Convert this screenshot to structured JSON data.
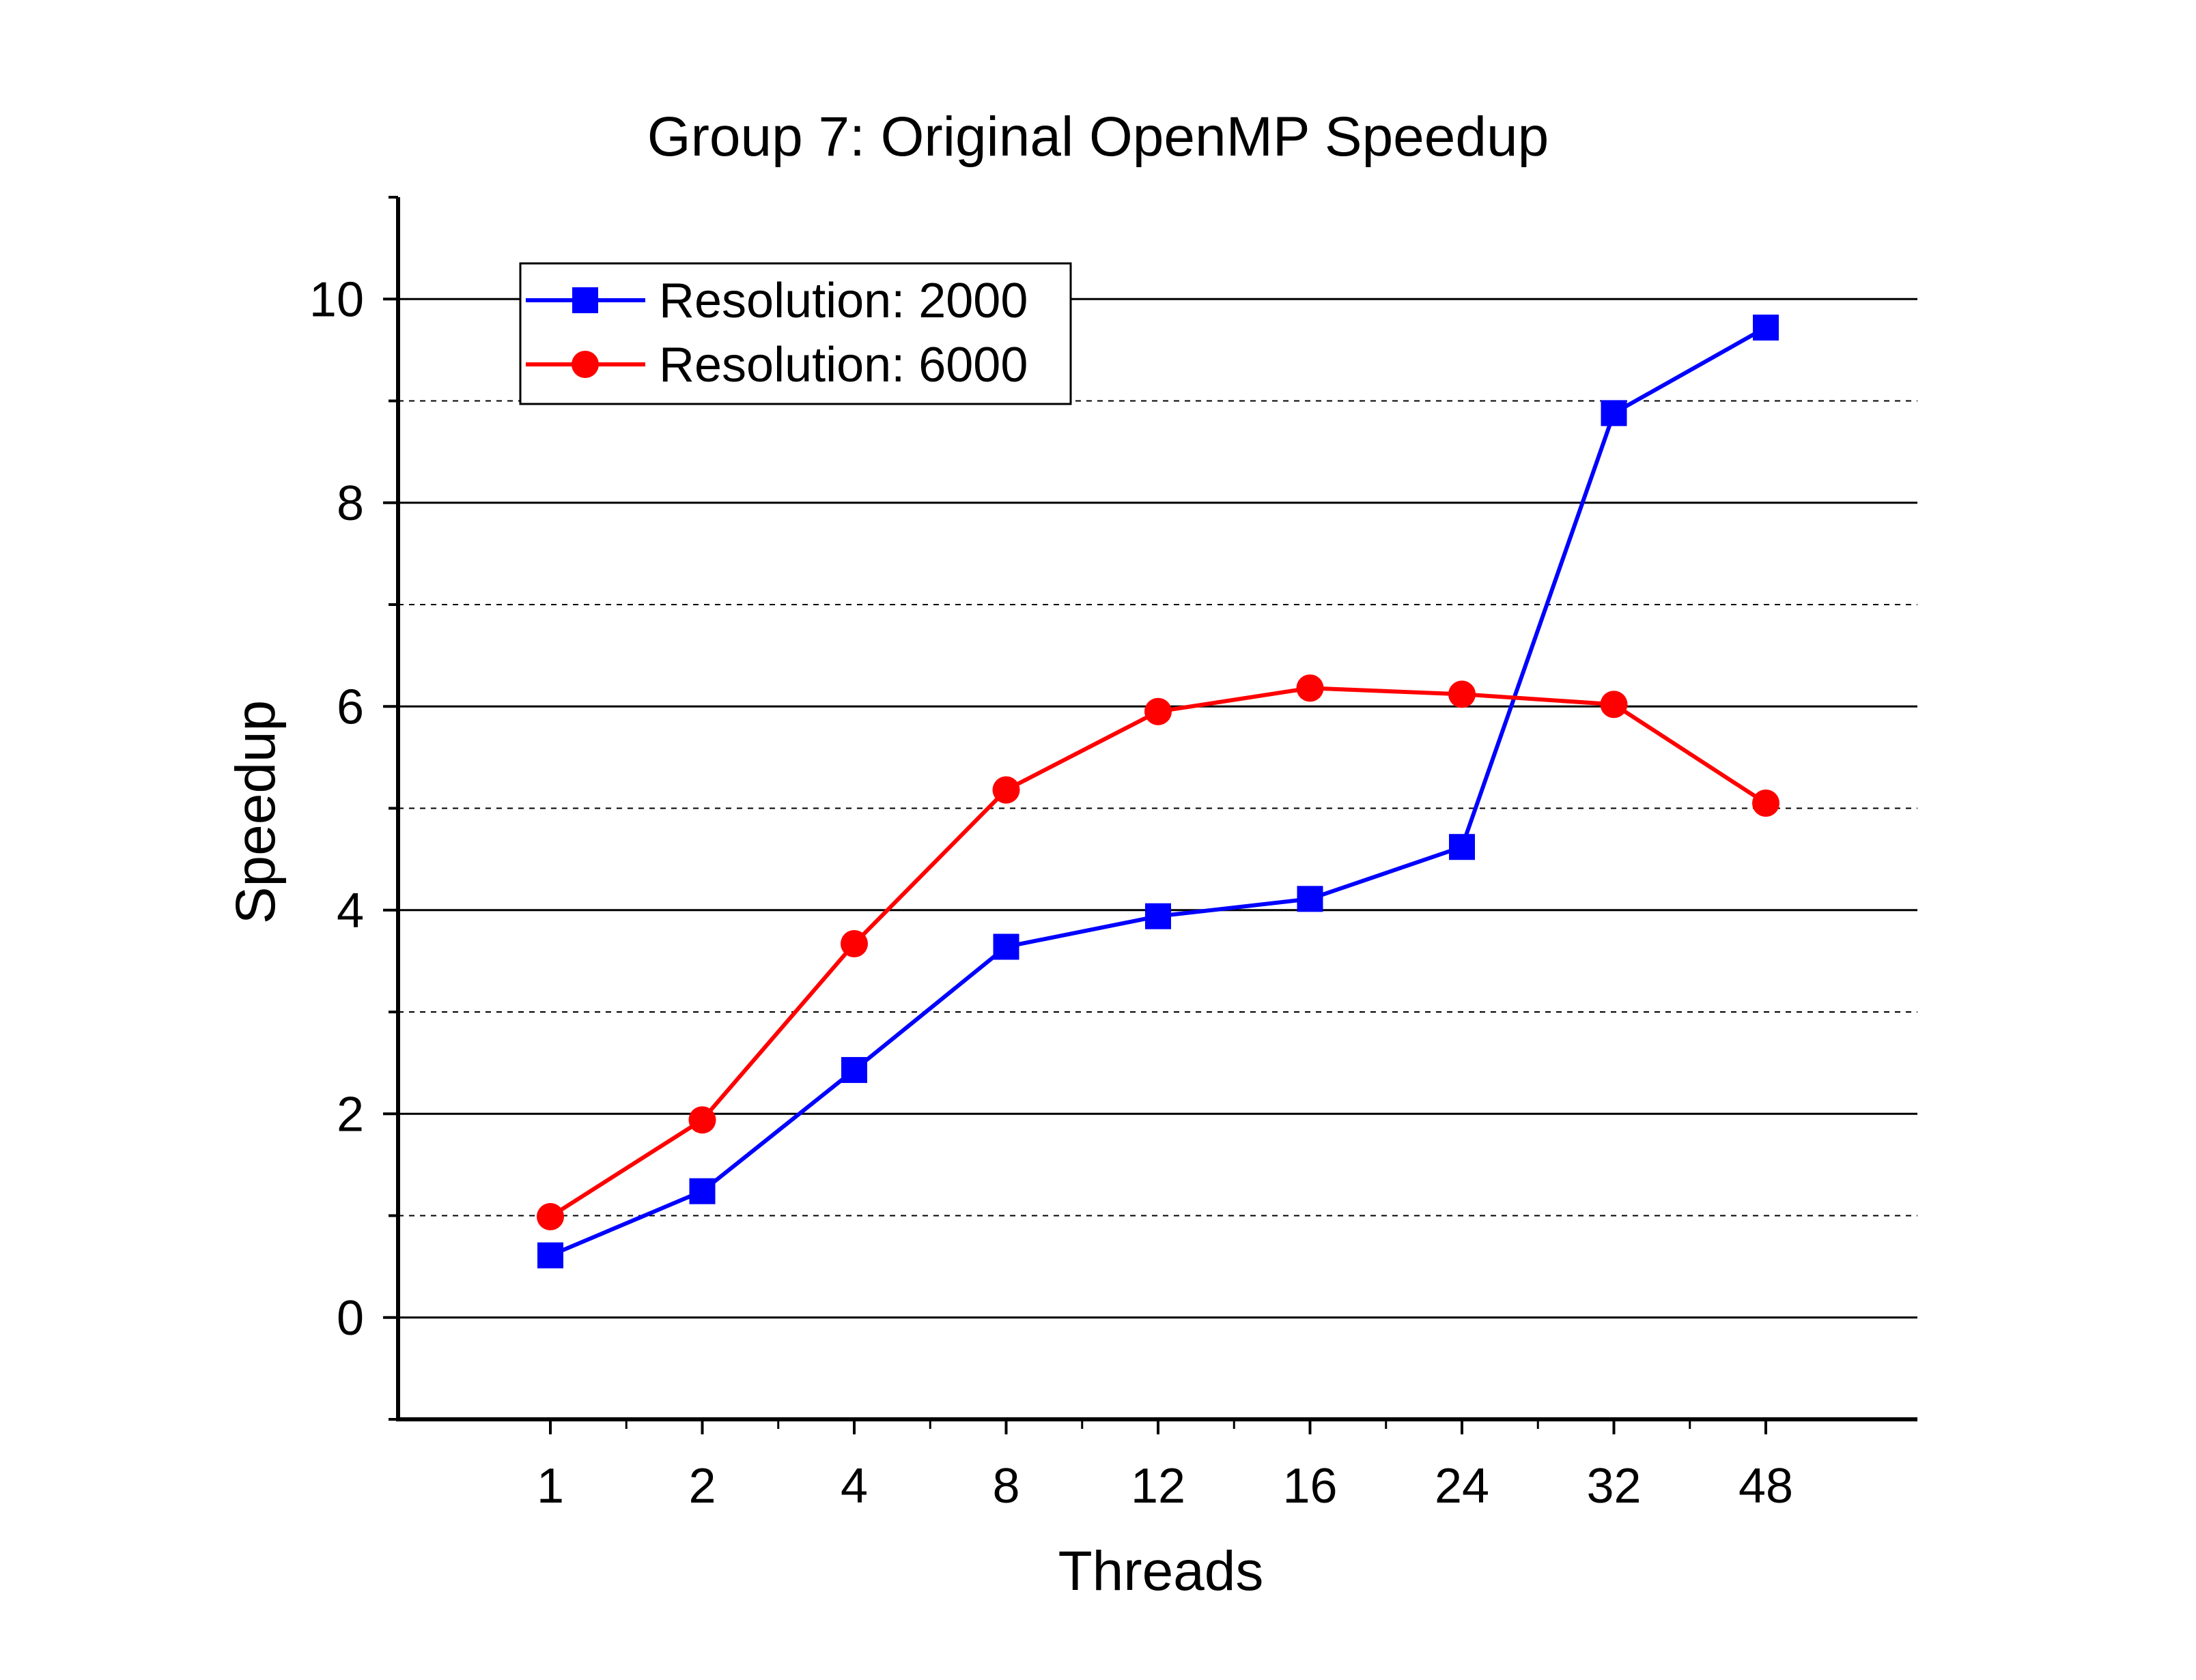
{
  "chart_data": {
    "type": "line",
    "title": "Group 7: Original OpenMP Speedup",
    "xlabel": "Threads",
    "ylabel": "Speedup",
    "categories": [
      "1",
      "2",
      "4",
      "8",
      "12",
      "16",
      "24",
      "32",
      "48"
    ],
    "ylim": [
      -1,
      11
    ],
    "yticks": [
      0,
      2,
      4,
      6,
      8,
      10
    ],
    "grid": true,
    "legend_position": "top-left",
    "series": [
      {
        "name": "Resolution: 2000",
        "color": "#0000ff",
        "marker": "square",
        "values": [
          0.61,
          1.24,
          2.43,
          3.64,
          3.94,
          4.11,
          4.62,
          8.88,
          9.72
        ]
      },
      {
        "name": "Resolution: 6000",
        "color": "#ff0000",
        "marker": "circle",
        "values": [
          0.99,
          1.94,
          3.67,
          5.18,
          5.95,
          6.18,
          6.12,
          6.02,
          5.05
        ]
      }
    ]
  }
}
